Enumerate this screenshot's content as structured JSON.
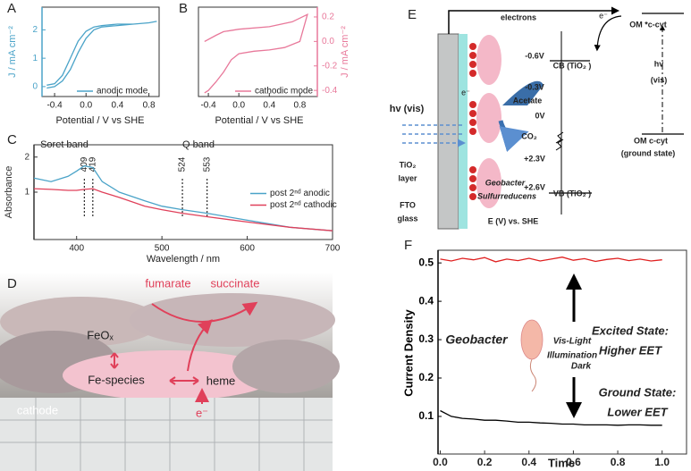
{
  "chart_data": [
    {
      "type": "line",
      "panel": "A",
      "xlabel": "Potential / V vs SHE",
      "ylabel": "J / mA cm⁻²",
      "y_axis_side": "left",
      "axis_color": "#4aa3c8",
      "legend": "lower right",
      "xlim": [
        -0.56,
        0.93
      ],
      "ylim": [
        -0.35,
        2.8
      ],
      "xticks": [
        -0.4,
        {
          "value": 0,
          "label": "0.0"
        },
        0.4,
        0.8
      ],
      "yticks": [
        0,
        1,
        2
      ],
      "series": [
        {
          "name": "anodic mode",
          "color": "#4aa3c8",
          "x": [
            -0.5,
            -0.4,
            -0.3,
            -0.2,
            -0.1,
            0,
            0.1,
            0.2,
            0.4,
            0.6,
            0.8,
            0.9,
            0.8,
            0.6,
            0.4,
            0.2,
            0.1,
            0,
            -0.1,
            -0.2,
            -0.3,
            -0.4,
            -0.5
          ],
          "values": [
            0.05,
            0.1,
            0.4,
            1.0,
            1.6,
            1.95,
            2.1,
            2.15,
            2.2,
            2.2,
            2.25,
            2.3,
            2.25,
            2.2,
            2.15,
            2.1,
            2.0,
            1.7,
            1.2,
            0.6,
            0.2,
            0.0,
            -0.05
          ]
        }
      ]
    },
    {
      "type": "line",
      "panel": "B",
      "xlabel": "Potential / V vs SHE",
      "ylabel": "J / mA cm⁻²",
      "y_axis_side": "right",
      "axis_color": "#e8789a",
      "legend": "lower right",
      "xlim": [
        -0.53,
        1.03
      ],
      "ylim": [
        -0.45,
        0.28
      ],
      "xticks": [
        -0.4,
        {
          "value": 0,
          "label": "0.0"
        },
        0.4,
        0.8
      ],
      "yticks": [
        0.2,
        {
          "value": 0,
          "label": "0.0"
        },
        -0.2,
        -0.4
      ],
      "series": [
        {
          "name": "cathodic mode",
          "color": "#e8789a",
          "x": [
            -0.45,
            -0.3,
            -0.2,
            0,
            0.4,
            0.7,
            0.9,
            0.8,
            0.6,
            0.4,
            0.2,
            0,
            -0.1,
            -0.2,
            -0.3,
            -0.4,
            -0.45
          ],
          "values": [
            0.0,
            0.05,
            0.08,
            0.1,
            0.12,
            0.16,
            0.22,
            0.0,
            -0.05,
            -0.07,
            -0.08,
            -0.1,
            -0.15,
            -0.25,
            -0.33,
            -0.4,
            -0.42
          ]
        }
      ]
    },
    {
      "type": "line",
      "panel": "C",
      "xlabel": "Wavelength / nm",
      "ylabel": "Absorbance",
      "y_axis_side": "left",
      "axis_color": "#333333",
      "legend": "center right",
      "xlim": [
        350,
        700
      ],
      "ylim": [
        -0.35,
        2.35
      ],
      "xticks": [
        400,
        500,
        600,
        700
      ],
      "yticks": [
        1,
        2
      ],
      "annotations": [
        "Soret band",
        "Q band"
      ],
      "markers": [
        409,
        419,
        524,
        553
      ],
      "series": [
        {
          "name": "post 2ⁿᵈ anodic",
          "color": "#4aa3c8",
          "x": [
            350,
            370,
            390,
            400,
            409,
            419,
            430,
            450,
            480,
            500,
            524,
            553,
            600,
            650,
            700
          ],
          "values": [
            1.4,
            1.3,
            1.45,
            1.6,
            1.75,
            1.7,
            1.3,
            1.0,
            0.75,
            0.6,
            0.5,
            0.4,
            0.2,
            0.0,
            -0.1
          ]
        },
        {
          "name": "post 2ⁿᵈ cathodic",
          "color": "#e0405a",
          "x": [
            350,
            370,
            390,
            400,
            409,
            419,
            430,
            450,
            480,
            500,
            524,
            553,
            600,
            650,
            700
          ],
          "values": [
            1.1,
            1.08,
            1.05,
            1.05,
            1.08,
            1.1,
            1.0,
            0.85,
            0.6,
            0.5,
            0.4,
            0.3,
            0.15,
            0.0,
            -0.1
          ]
        }
      ]
    },
    {
      "type": "line",
      "panel": "F",
      "xlabel": "Time",
      "ylabel": "Current Density",
      "y_axis_side": "left",
      "axis_color": "#000000",
      "xlim": [
        -0.01,
        1.11
      ],
      "ylim": [
        0.002,
        0.533
      ],
      "xticks": [
        {
          "value": 0,
          "label": "0.0"
        },
        0.2,
        0.4,
        0.6,
        0.8,
        {
          "value": 1,
          "label": "1.0"
        }
      ],
      "yticks": [
        0.1,
        0.2,
        0.3,
        0.4,
        0.5
      ],
      "annotations": [
        "Excited State:",
        "Higher EET",
        "Vis-Light",
        "Illumination",
        "Geobacter",
        "Dark",
        "Ground State:",
        "Lower EET"
      ],
      "series": [
        {
          "color": "#e02020",
          "x": [
            0,
            0.05,
            0.1,
            0.15,
            0.2,
            0.25,
            0.3,
            0.35,
            0.4,
            0.45,
            0.5,
            0.55,
            0.6,
            0.65,
            0.7,
            0.75,
            0.8,
            0.85,
            0.9,
            0.95,
            1.0
          ],
          "values": [
            0.51,
            0.505,
            0.512,
            0.508,
            0.514,
            0.503,
            0.51,
            0.506,
            0.512,
            0.505,
            0.51,
            0.515,
            0.507,
            0.511,
            0.504,
            0.509,
            0.512,
            0.506,
            0.51,
            0.505,
            0.508
          ]
        },
        {
          "color": "#000000",
          "x": [
            0,
            0.05,
            0.1,
            0.15,
            0.2,
            0.25,
            0.3,
            0.35,
            0.4,
            0.45,
            0.5,
            0.55,
            0.6,
            0.65,
            0.7,
            0.75,
            0.8,
            0.85,
            0.9,
            0.95,
            1.0
          ],
          "values": [
            0.115,
            0.1,
            0.095,
            0.093,
            0.09,
            0.09,
            0.088,
            0.085,
            0.085,
            0.083,
            0.082,
            0.08,
            0.08,
            0.078,
            0.078,
            0.078,
            0.077,
            0.078,
            0.078,
            0.077,
            0.077
          ]
        }
      ]
    }
  ],
  "panel_d": {
    "panel": "D",
    "labels": [
      "fumarate",
      "succinate",
      "FeOₓ",
      "Fe-species",
      "heme",
      "e⁻",
      "cathode"
    ]
  },
  "panel_e": {
    "panel": "E",
    "labels": [
      "electrons",
      "e⁻",
      "-0.6V",
      "CB (TiO₂ )",
      "OM *c-cyt",
      "hv",
      "(vis)",
      "-0.3V",
      "0V",
      "Acetate",
      "hv (vis)",
      "CO₂",
      "OM c-cyt",
      "(ground state)",
      "+2.3V",
      "TiO₂",
      "layer",
      "+2.6V",
      "VB (TiO₂ )",
      "Geobacter",
      "Sulfurreducens",
      "FTO",
      "glass",
      "E (V) vs. SHE",
      "e⁻"
    ]
  }
}
